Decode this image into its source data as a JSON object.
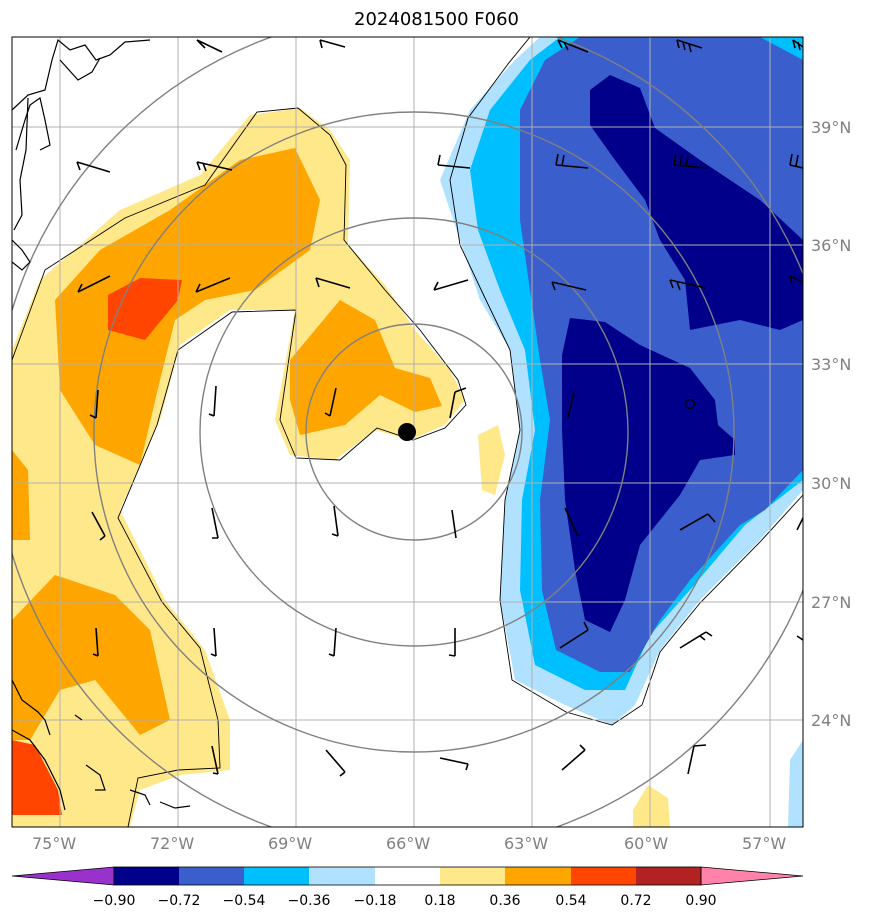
{
  "title": "2024081500 F060",
  "latitude_labels": [
    "39°N",
    "36°N",
    "33°N",
    "30°N",
    "27°N",
    "24°N"
  ],
  "longitude_labels": [
    "75°W",
    "72°W",
    "69°W",
    "66°W",
    "63°W",
    "60°W",
    "57°W"
  ],
  "colorbar": {
    "tick_labels": [
      "−0.90",
      "−0.72",
      "−0.54",
      "−0.36",
      "−0.18",
      "0.18",
      "0.36",
      "0.54",
      "0.72",
      "0.90"
    ],
    "colors": [
      "#9932cc",
      "#00008b",
      "#3a5fcd",
      "#00bfff",
      "#b0e2ff",
      "#ffffff",
      "#ffe88a",
      "#ffa500",
      "#ff4500",
      "#b22222",
      "#ff82ab"
    ]
  },
  "map": {
    "storm_center_marker": "filled-circle",
    "map_frame_color": "#000000",
    "gridline_color": "#b0b0b0",
    "range_ring_color": "#808080"
  }
}
